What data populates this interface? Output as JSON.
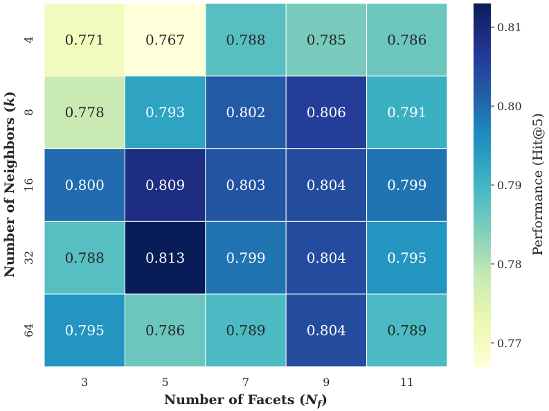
{
  "chart_data": {
    "type": "heatmap",
    "x": [
      "3",
      "5",
      "7",
      "9",
      "11"
    ],
    "y": [
      "4",
      "8",
      "16",
      "32",
      "64"
    ],
    "values": [
      [
        0.771,
        0.767,
        0.788,
        0.785,
        0.786
      ],
      [
        0.778,
        0.793,
        0.802,
        0.806,
        0.791
      ],
      [
        0.8,
        0.809,
        0.803,
        0.804,
        0.799
      ],
      [
        0.788,
        0.813,
        0.799,
        0.804,
        0.795
      ],
      [
        0.795,
        0.786,
        0.789,
        0.804,
        0.789
      ]
    ],
    "labels": [
      [
        "0.771",
        "0.767",
        "0.788",
        "0.785",
        "0.786"
      ],
      [
        "0.778",
        "0.793",
        "0.802",
        "0.806",
        "0.791"
      ],
      [
        "0.800",
        "0.809",
        "0.803",
        "0.804",
        "0.799"
      ],
      [
        "0.788",
        "0.813",
        "0.799",
        "0.804",
        "0.795"
      ],
      [
        "0.795",
        "0.786",
        "0.789",
        "0.804",
        "0.789"
      ]
    ],
    "xlabel": {
      "prefix": "Number of Facets (",
      "symbol": "N",
      "sub": "f",
      "suffix": ")"
    },
    "ylabel": {
      "prefix": "Number of Neighbors (",
      "symbol": "k",
      "suffix": ")"
    },
    "colorbar": {
      "label": "Performance (Hit@5)",
      "vmin": 0.767,
      "vmax": 0.813,
      "ticks": [
        0.77,
        0.78,
        0.79,
        0.8,
        0.81
      ],
      "tick_labels": [
        "0.77",
        "0.78",
        "0.79",
        "0.80",
        "0.81"
      ]
    },
    "colormap": "YlGnBu"
  }
}
